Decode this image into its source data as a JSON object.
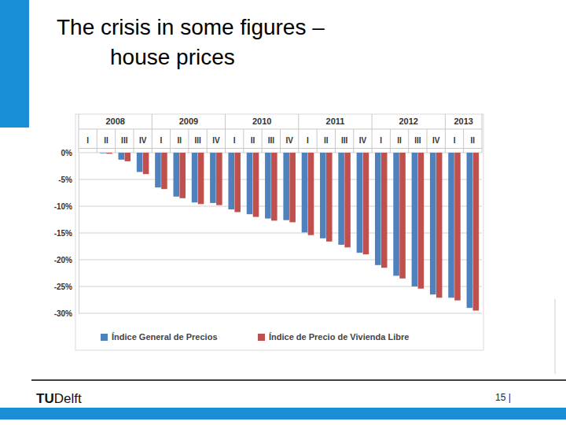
{
  "slide": {
    "title_lines": [
      "The crisis in some figures –",
      "house prices"
    ],
    "logo": [
      "TU",
      "Delft"
    ],
    "page": "15 |"
  },
  "chart_data": {
    "type": "bar",
    "groups": [
      {
        "label": "2008",
        "categories": [
          "I",
          "II",
          "III",
          "IV"
        ]
      },
      {
        "label": "2009",
        "categories": [
          "I",
          "II",
          "III",
          "IV"
        ]
      },
      {
        "label": "2010",
        "categories": [
          "I",
          "II",
          "III",
          "IV"
        ]
      },
      {
        "label": "2011",
        "categories": [
          "I",
          "II",
          "III",
          "IV"
        ]
      },
      {
        "label": "2012",
        "categories": [
          "I",
          "II",
          "III",
          "IV"
        ]
      },
      {
        "label": "2013",
        "categories": [
          "I",
          "II"
        ]
      }
    ],
    "series": [
      {
        "name": "Índice General de Precios",
        "color": "#4f81bd",
        "values": [
          0,
          -0.1,
          -1.3,
          -3.6,
          -6.5,
          -8.2,
          -9.3,
          -9.4,
          -10.6,
          -11.5,
          -12.3,
          -12.6,
          -14.9,
          -16.0,
          -17.2,
          -18.7,
          -21.0,
          -23.0,
          -25.0,
          -26.5,
          -27.1,
          -29.0
        ]
      },
      {
        "name": "Índice de Precio de Vivienda Libre",
        "color": "#c0504d",
        "values": [
          0,
          -0.2,
          -1.6,
          -4.0,
          -6.8,
          -8.5,
          -9.6,
          -9.8,
          -11.1,
          -12.0,
          -12.7,
          -13.0,
          -15.4,
          -16.6,
          -17.7,
          -19.0,
          -21.5,
          -23.5,
          -25.4,
          -27.1,
          -27.6,
          -29.5
        ]
      }
    ],
    "ylim": [
      -30,
      0
    ],
    "yticks": [
      {
        "value": 0,
        "label": "0%"
      },
      {
        "value": -5,
        "label": "-5%"
      },
      {
        "value": -10,
        "label": "-10%"
      },
      {
        "value": -15,
        "label": "-15%"
      },
      {
        "value": -20,
        "label": "-20%"
      },
      {
        "value": -25,
        "label": "-25%"
      },
      {
        "value": -30,
        "label": "-30%"
      }
    ],
    "grid": true,
    "legend": "bottom"
  }
}
